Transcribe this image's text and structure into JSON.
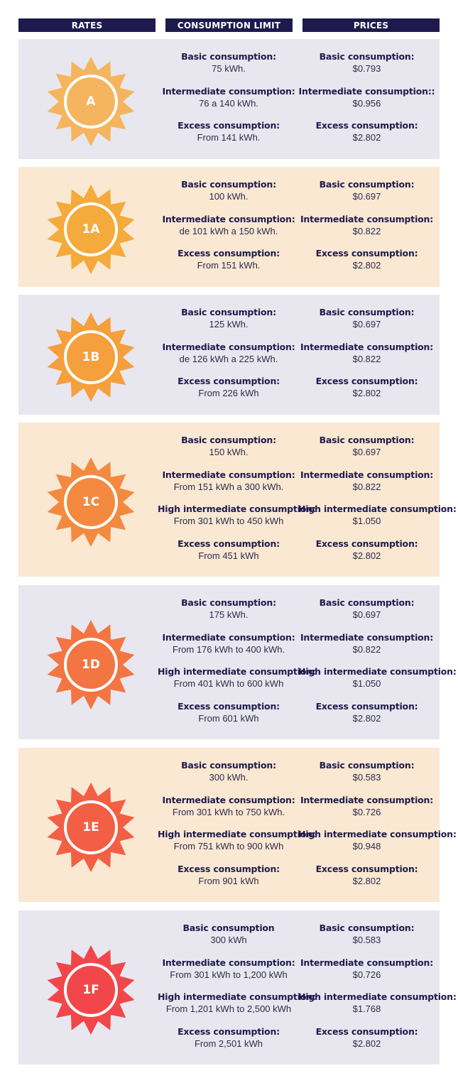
{
  "headers": {
    "rates": "RATES",
    "limit": "CONSUMPTION LIMIT",
    "prices": "PRICES"
  },
  "colors": {
    "header_bg": "#1f1a4d",
    "grey_row": "#e8e7ef",
    "beige_row": "#fae8d3"
  },
  "rows": [
    {
      "rate": "A",
      "sun_color": "#f5b55f",
      "limits": [
        {
          "t": "Basic consumption:",
          "v": "75 kWh."
        },
        {
          "t": "Intermediate consumption:",
          "v": "76 a 140 kWh."
        },
        {
          "t": "Excess consumption:",
          "v": "From 141 kWh."
        }
      ],
      "prices": [
        {
          "t": "Basic consumption:",
          "v": "$0.793"
        },
        {
          "t": "Intermediate consumption::",
          "v": "$0.956"
        },
        {
          "t": "Excess consumption:",
          "v": "$2.802"
        }
      ]
    },
    {
      "rate": "1A",
      "sun_color": "#f5aa3c",
      "limits": [
        {
          "t": "Basic consumption:",
          "v": "100 kWh."
        },
        {
          "t": "Intermediate consumption:",
          "v": "de 101 kWh a 150 kWh."
        },
        {
          "t": "Excess consumption:",
          "v": "From 151 kWh."
        }
      ],
      "prices": [
        {
          "t": "Basic consumption:",
          "v": "$0.697"
        },
        {
          "t": "Intermediate consumption:",
          "v": "$0.822"
        },
        {
          "t": "Excess consumption:",
          "v": "$2.802"
        }
      ]
    },
    {
      "rate": "1B",
      "sun_color": "#f59f3d",
      "limits": [
        {
          "t": "Basic consumption:",
          "v": "125 kWh."
        },
        {
          "t": "Intermediate consumption:",
          "v": "de 126 kWh a 225 kWh."
        },
        {
          "t": "Excess consumption:",
          "v": "From 226 kWh"
        }
      ],
      "prices": [
        {
          "t": "Basic consumption:",
          "v": "$0.697"
        },
        {
          "t": "Intermediate consumption:",
          "v": "$0.822"
        },
        {
          "t": "Excess consumption:",
          "v": "$2.802"
        }
      ]
    },
    {
      "rate": "1C",
      "sun_color": "#f38a3f",
      "limits": [
        {
          "t": "Basic consumption:",
          "v": "150 kWh."
        },
        {
          "t": "Intermediate consumption:",
          "v": "From 151 kWh a 300 kWh."
        },
        {
          "t": "High intermediate consumption:",
          "v": "From 301 kWh to 450 kWh"
        },
        {
          "t": "Excess consumption:",
          "v": "From 451 kWh"
        }
      ],
      "prices": [
        {
          "t": "Basic consumption:",
          "v": "$0.697"
        },
        {
          "t": "Intermediate consumption:",
          "v": "$0.822"
        },
        {
          "t": "High intermediate consumption:",
          "v": "$1.050"
        },
        {
          "t": "Excess consumption:",
          "v": "$2.802"
        }
      ]
    },
    {
      "rate": "1D",
      "sun_color": "#f37542",
      "limits": [
        {
          "t": "Basic consumption:",
          "v": "175 kWh."
        },
        {
          "t": "Intermediate consumption:",
          "v": "From 176 kWh to 400 kWh."
        },
        {
          "t": "High intermediate consumption:",
          "v": "From 401 kWh to 600 kWh"
        },
        {
          "t": "Excess consumption:",
          "v": "From 601 kWh"
        }
      ],
      "prices": [
        {
          "t": "Basic consumption:",
          "v": "$0.697"
        },
        {
          "t": "Intermediate consumption:",
          "v": "$0.822"
        },
        {
          "t": "High intermediate consumption:",
          "v": "$1.050"
        },
        {
          "t": "Excess consumption:",
          "v": "$2.802"
        }
      ]
    },
    {
      "rate": "1E",
      "sun_color": "#f35f44",
      "limits": [
        {
          "t": "Basic consumption:",
          "v": "300 kWh."
        },
        {
          "t": "Intermediate consumption:",
          "v": "From 301 kWh to 750 kWh."
        },
        {
          "t": "High intermediate consumption:",
          "v": "From 751 kWh to 900 kWh"
        },
        {
          "t": "Excess consumption:",
          "v": "From 901 kWh"
        }
      ],
      "prices": [
        {
          "t": "Basic consumption:",
          "v": "$0.583"
        },
        {
          "t": "Intermediate consumption:",
          "v": "$0.726"
        },
        {
          "t": "High intermediate consumption:",
          "v": "$0.948"
        },
        {
          "t": "Excess consumption:",
          "v": "$2.802"
        }
      ]
    },
    {
      "rate": "1F",
      "sun_color": "#f2474a",
      "limits": [
        {
          "t": "Basic consumption",
          "v": "300 kWh"
        },
        {
          "t": "Intermediate consumption:",
          "v": "From 301 kWh to 1,200 kWh"
        },
        {
          "t": "High intermediate consumption:",
          "v": "From 1,201 kWh to 2,500 kWh"
        },
        {
          "t": "Excess consumption:",
          "v": "From 2,501 kWh"
        }
      ],
      "prices": [
        {
          "t": "Basic consumption:",
          "v": "$0.583"
        },
        {
          "t": "Intermediate consumption:",
          "v": "$0.726"
        },
        {
          "t": "High intermediate consumption:",
          "v": "$1.768"
        },
        {
          "t": "Excess consumption:",
          "v": "$2.802"
        }
      ]
    }
  ]
}
